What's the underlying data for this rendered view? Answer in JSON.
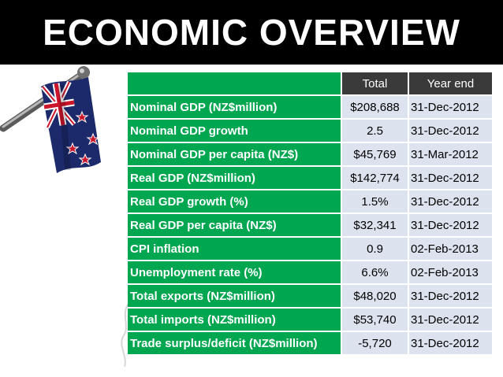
{
  "slide": {
    "title": "ECONOMIC OVERVIEW"
  },
  "table": {
    "headers": [
      "Total",
      "Year end"
    ],
    "rows": [
      {
        "label": "Nominal GDP (NZ$million)",
        "total": "$208,688",
        "year_end": "31-Dec-2012"
      },
      {
        "label": "Nominal GDP growth",
        "total": "2.5",
        "year_end": "31-Dec-2012"
      },
      {
        "label": "Nominal GDP per capita (NZ$)",
        "total": "$45,769",
        "year_end": "31-Mar-2012"
      },
      {
        "label": "Real GDP (NZ$million)",
        "total": "$142,774",
        "year_end": "31-Dec-2012"
      },
      {
        "label": "Real GDP growth (%)",
        "total": "1.5%",
        "year_end": "31-Dec-2012"
      },
      {
        "label": "Real GDP per capita (NZ$)",
        "total": "$32,341",
        "year_end": "31-Dec-2012"
      },
      {
        "label": "CPI inflation",
        "total": "0.9",
        "year_end": "02-Feb-2013"
      },
      {
        "label": "Unemployment rate (%)",
        "total": "6.6%",
        "year_end": "02-Feb-2013"
      },
      {
        "label": "Total exports (NZ$million)",
        "total": "$48,020",
        "year_end": "31-Dec-2012"
      },
      {
        "label": "Total imports (NZ$million)",
        "total": "$53,740",
        "year_end": "31-Dec-2012"
      },
      {
        "label": "Trade surplus/deficit (NZ$million)",
        "total": "-5,720",
        "year_end": "31-Dec-2012"
      }
    ]
  },
  "colors": {
    "label_green": "#00a650",
    "header_dark": "#3a3a3a",
    "value_bg": "#dde3ee",
    "flag_blue": "#1c2a6b",
    "flag_red": "#cc142b"
  },
  "icons": {
    "flag": "new-zealand-flag-icon"
  }
}
